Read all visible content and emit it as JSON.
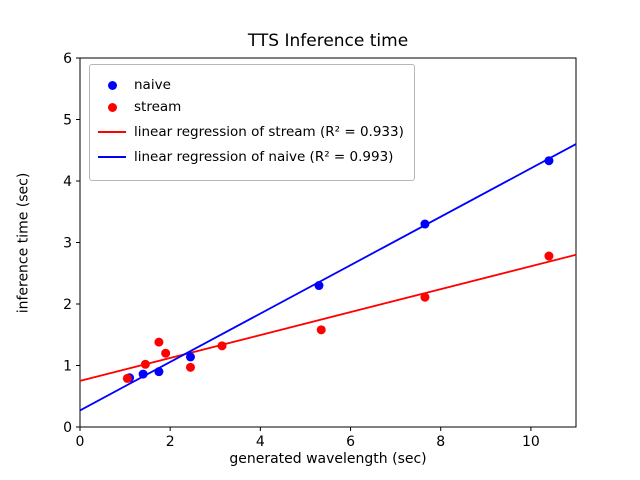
{
  "chart_data": {
    "type": "scatter",
    "title": "TTS Inference time",
    "xlabel": "generated wavelength (sec)",
    "ylabel": "inference time (sec)",
    "xlim": [
      0,
      11
    ],
    "ylim": [
      0,
      6
    ],
    "xticks": [
      0,
      2,
      4,
      6,
      8,
      10
    ],
    "yticks": [
      0,
      1,
      2,
      3,
      4,
      5,
      6
    ],
    "grid": false,
    "series": [
      {
        "name": "naive",
        "type": "scatter",
        "color": "#0000ff",
        "points": [
          [
            1.1,
            0.8
          ],
          [
            1.4,
            0.86
          ],
          [
            1.75,
            0.9
          ],
          [
            2.45,
            1.14
          ],
          [
            5.3,
            2.3
          ],
          [
            7.65,
            3.3
          ],
          [
            10.4,
            4.33
          ]
        ]
      },
      {
        "name": "stream",
        "type": "scatter",
        "color": "#ff0000",
        "points": [
          [
            1.05,
            0.79
          ],
          [
            1.45,
            1.02
          ],
          [
            1.75,
            1.38
          ],
          [
            1.9,
            1.2
          ],
          [
            2.45,
            0.97
          ],
          [
            3.15,
            1.32
          ],
          [
            5.35,
            1.58
          ],
          [
            7.65,
            2.11
          ],
          [
            10.4,
            2.78
          ]
        ]
      },
      {
        "name": "linear-regression-of-stream",
        "type": "line",
        "color": "#ff0000",
        "slope": 0.186,
        "intercept": 0.75,
        "points": [
          [
            0,
            0.75
          ],
          [
            11,
            2.8
          ]
        ]
      },
      {
        "name": "linear-regression-of-naive",
        "type": "line",
        "color": "#0000ff",
        "slope": 0.394,
        "intercept": 0.27,
        "points": [
          [
            0,
            0.27
          ],
          [
            11,
            4.6
          ]
        ]
      }
    ],
    "legend": {
      "position": "upper left",
      "items": [
        {
          "marker": "dot",
          "color": "#0000ff",
          "label": "naive"
        },
        {
          "marker": "dot",
          "color": "#ff0000",
          "label": "stream"
        },
        {
          "marker": "line",
          "color": "#ff0000",
          "label": "linear regression of stream (R² = 0.933)"
        },
        {
          "marker": "line",
          "color": "#0000ff",
          "label": "linear regression of naive (R² = 0.993)"
        }
      ]
    }
  }
}
